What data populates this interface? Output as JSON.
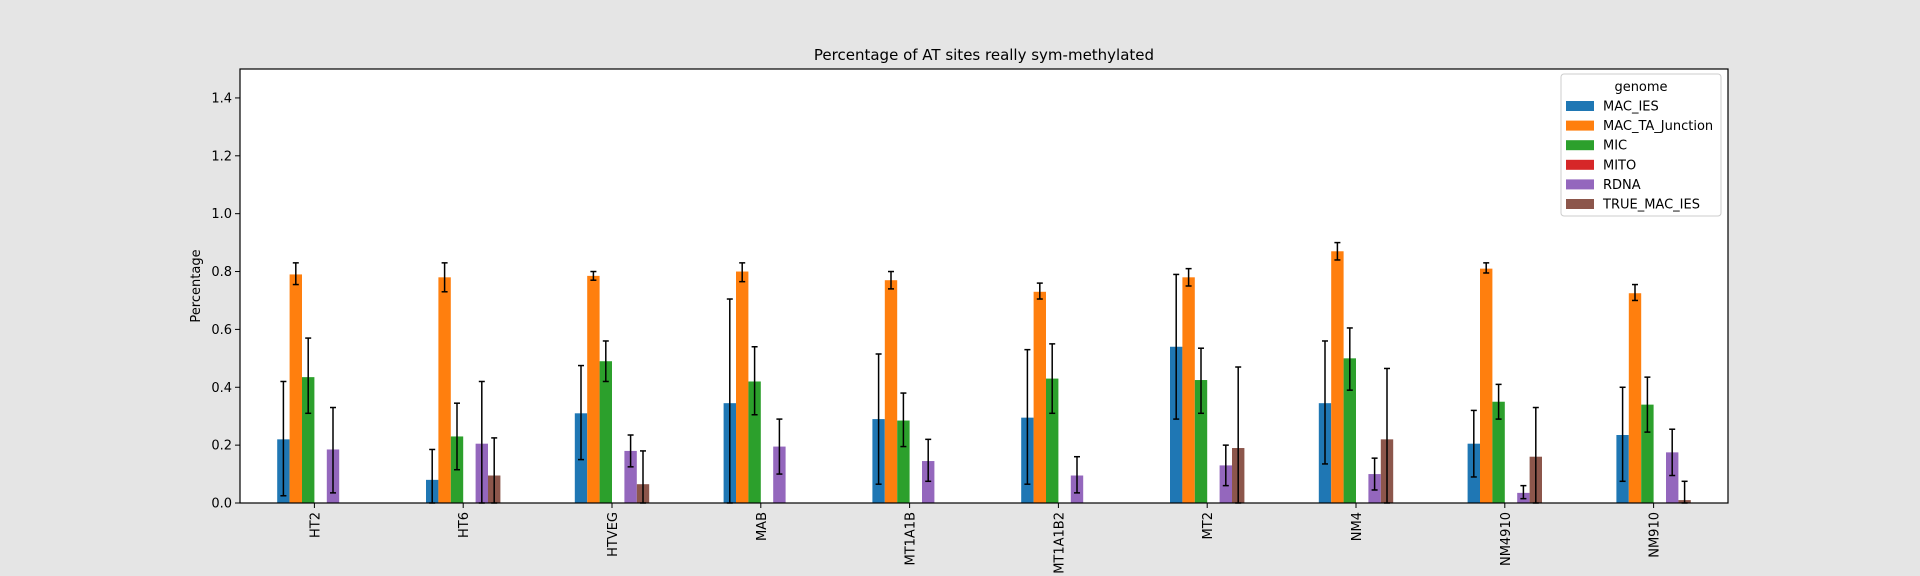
{
  "chart_data": {
    "type": "bar",
    "title": "Percentage of AT sites really sym-methylated",
    "xlabel": "",
    "ylabel": "Percentage",
    "ylim": [
      0,
      1.5
    ],
    "yticks": [
      "0.0",
      "0.2",
      "0.4",
      "0.6",
      "0.8",
      "1.0",
      "1.2",
      "1.4"
    ],
    "grid": false,
    "legend_title": "genome",
    "legend_position": "top-right",
    "categories": [
      "HT2",
      "HT6",
      "HTVEG",
      "MAB",
      "MT1A1B",
      "MT1A1B2",
      "MT2",
      "NM4",
      "NM4910",
      "NM910"
    ],
    "series": [
      {
        "name": "MAC_IES",
        "color": "#1f77b4",
        "values": [
          0.22,
          0.08,
          0.31,
          0.345,
          0.29,
          0.295,
          0.54,
          0.345,
          0.205,
          0.235
        ],
        "err_low": [
          0.025,
          0.0,
          0.15,
          0.0,
          0.065,
          0.065,
          0.29,
          0.135,
          0.09,
          0.075
        ],
        "err_high": [
          0.42,
          0.185,
          0.475,
          0.705,
          0.515,
          0.53,
          0.79,
          0.56,
          0.32,
          0.4
        ]
      },
      {
        "name": "MAC_TA_Junction",
        "color": "#ff7f0e",
        "values": [
          0.79,
          0.78,
          0.785,
          0.8,
          0.77,
          0.73,
          0.78,
          0.87,
          0.81,
          0.725
        ],
        "err_low": [
          0.755,
          0.73,
          0.77,
          0.765,
          0.74,
          0.705,
          0.75,
          0.84,
          0.795,
          0.7
        ],
        "err_high": [
          0.83,
          0.83,
          0.8,
          0.83,
          0.8,
          0.76,
          0.81,
          0.9,
          0.83,
          0.755
        ]
      },
      {
        "name": "MIC",
        "color": "#2ca02c",
        "values": [
          0.435,
          0.23,
          0.49,
          0.42,
          0.285,
          0.43,
          0.425,
          0.5,
          0.35,
          0.34
        ],
        "err_low": [
          0.31,
          0.115,
          0.42,
          0.305,
          0.195,
          0.31,
          0.31,
          0.39,
          0.29,
          0.245
        ],
        "err_high": [
          0.57,
          0.345,
          0.56,
          0.54,
          0.38,
          0.55,
          0.535,
          0.605,
          0.41,
          0.435
        ]
      },
      {
        "name": "MITO",
        "color": "#d62728",
        "values": [
          null,
          null,
          null,
          null,
          null,
          null,
          null,
          null,
          null,
          null
        ],
        "err_low": [
          null,
          null,
          null,
          null,
          null,
          null,
          null,
          null,
          null,
          null
        ],
        "err_high": [
          null,
          null,
          null,
          null,
          null,
          null,
          null,
          null,
          null,
          null
        ]
      },
      {
        "name": "RDNA",
        "color": "#9467bd",
        "values": [
          0.185,
          0.205,
          0.18,
          0.195,
          0.145,
          0.095,
          0.13,
          0.1,
          0.035,
          0.175
        ],
        "err_low": [
          0.035,
          0.0,
          0.125,
          0.1,
          0.075,
          0.035,
          0.06,
          0.045,
          0.015,
          0.095
        ],
        "err_high": [
          0.33,
          0.42,
          0.235,
          0.29,
          0.22,
          0.16,
          0.2,
          0.155,
          0.06,
          0.255
        ]
      },
      {
        "name": "TRUE_MAC_IES",
        "color": "#8c564b",
        "values": [
          null,
          0.095,
          0.065,
          null,
          null,
          null,
          0.19,
          0.22,
          0.16,
          0.01
        ],
        "err_low": [
          null,
          0.0,
          0.0,
          null,
          null,
          null,
          0.0,
          0.0,
          0.0,
          0.0
        ],
        "err_high": [
          null,
          0.225,
          0.18,
          null,
          null,
          null,
          0.47,
          0.465,
          0.33,
          0.075
        ]
      }
    ]
  }
}
